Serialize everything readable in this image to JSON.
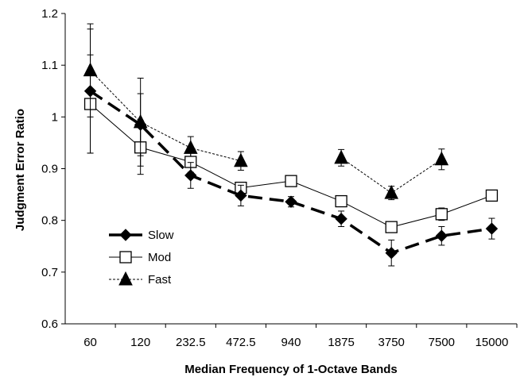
{
  "chart_data": {
    "type": "line",
    "categories": [
      "60",
      "120",
      "232.5",
      "472.5",
      "940",
      "1875",
      "3750",
      "7500",
      "15000"
    ],
    "xlabel": "Median Frequency of 1-Octave Bands",
    "ylabel": "Judgment Error Ratio",
    "ylim": [
      0.6,
      1.2
    ],
    "yticks": [
      "0.6",
      "0.7",
      "0.8",
      "0.9",
      "1",
      "1.1",
      "1.2"
    ],
    "grid": false,
    "legend_position": "bottom-left",
    "series": [
      {
        "name": "Slow",
        "marker": "diamond",
        "line_style": "long-dash",
        "color": "#000000",
        "values": [
          1.05,
          0.985,
          0.887,
          0.848,
          0.836,
          0.803,
          0.737,
          0.77,
          0.784
        ],
        "error": [
          0.12,
          0.06,
          0.025,
          0.02,
          0.01,
          0.015,
          0.025,
          0.018,
          0.02
        ]
      },
      {
        "name": "Mod",
        "marker": "square-open",
        "line_style": "solid",
        "color": "#000000",
        "values": [
          1.025,
          0.941,
          0.913,
          0.863,
          0.876,
          0.837,
          0.787,
          0.812,
          0.848
        ],
        "error": [
          0.095,
          0.052,
          0.02,
          0.01,
          0.01,
          0.01,
          0.01,
          0.012,
          0.01
        ]
      },
      {
        "name": "Fast",
        "marker": "triangle",
        "line_style": "short-dash",
        "color": "#000000",
        "values": [
          1.09,
          0.99,
          0.94,
          0.915,
          null,
          0.921,
          0.853,
          0.918,
          null
        ],
        "error": [
          0.09,
          0.085,
          0.022,
          0.018,
          null,
          0.016,
          0.013,
          0.02,
          null
        ]
      }
    ]
  }
}
